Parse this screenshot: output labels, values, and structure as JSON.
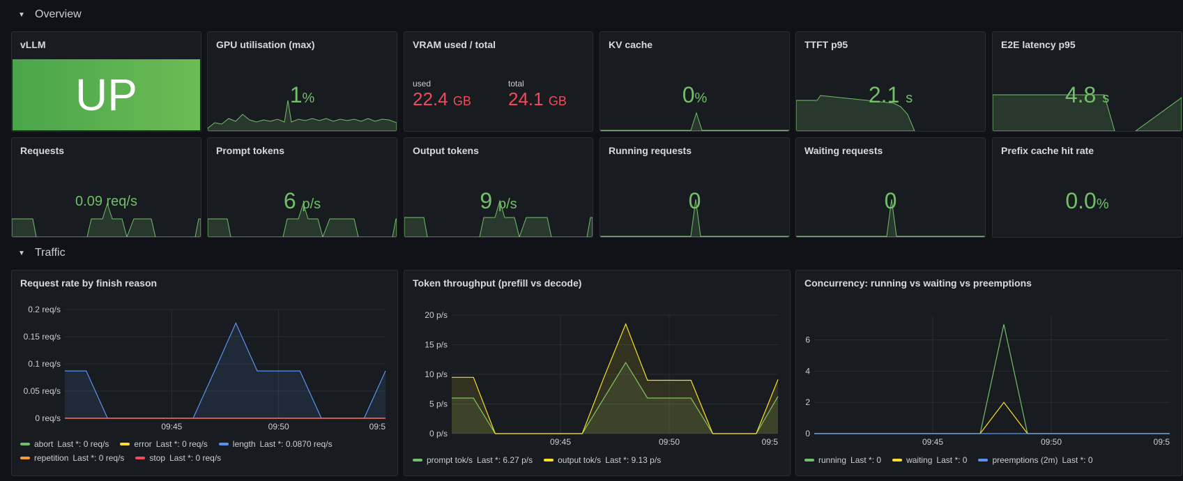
{
  "rows": {
    "overview": {
      "title": "Overview"
    },
    "traffic": {
      "title": "Traffic"
    }
  },
  "colors": {
    "green": "#73bf69",
    "yellow": "#fade2a",
    "blue": "#5794f2",
    "orange": "#ff9830",
    "red": "#f2495c"
  },
  "stat_panels": {
    "vllm": {
      "title": "vLLM",
      "value": "UP"
    },
    "gpu": {
      "title": "GPU utilisation (max)",
      "value": "1",
      "unit": "%"
    },
    "vram": {
      "title": "VRAM used / total",
      "used_label": "used",
      "used_value": "22.4",
      "used_unit": "GB",
      "total_label": "total",
      "total_value": "24.1",
      "total_unit": "GB"
    },
    "kv": {
      "title": "KV cache",
      "value": "0",
      "unit": "%"
    },
    "ttft": {
      "title": "TTFT p95",
      "value": "2.1",
      "unit": "s"
    },
    "e2e": {
      "title": "E2E latency p95",
      "value": "4.8",
      "unit": "s"
    },
    "requests": {
      "title": "Requests",
      "value": "0.09 req/s"
    },
    "prompt": {
      "title": "Prompt tokens",
      "value": "6",
      "unit": "p/s"
    },
    "output": {
      "title": "Output tokens",
      "value": "9",
      "unit": "p/s"
    },
    "running": {
      "title": "Running requests",
      "value": "0"
    },
    "waiting": {
      "title": "Waiting requests",
      "value": "0"
    },
    "prefix": {
      "title": "Prefix cache hit rate",
      "value": "0.0",
      "unit": "%"
    }
  },
  "chart_data": [
    {
      "type": "area",
      "title": "Request rate by finish reason",
      "x": [
        "09:40",
        "09:41",
        "09:42",
        "09:43",
        "09:44",
        "09:45",
        "09:46",
        "09:47",
        "09:48",
        "09:49",
        "09:50",
        "09:51",
        "09:52",
        "09:53",
        "09:54",
        "09:55"
      ],
      "xticks": [
        "09:45",
        "09:50",
        "09:5"
      ],
      "yticks": [
        "0 req/s",
        "0.05 req/s",
        "0.1 req/s",
        "0.15 req/s",
        "0.2 req/s"
      ],
      "ylim": [
        0,
        0.2
      ],
      "series": [
        {
          "name": "abort",
          "color": "#73bf69",
          "last": "Last *: 0 req/s",
          "values": [
            0,
            0,
            0,
            0,
            0,
            0,
            0,
            0,
            0,
            0,
            0,
            0,
            0,
            0,
            0,
            0
          ]
        },
        {
          "name": "error",
          "color": "#fade2a",
          "last": "Last *: 0 req/s",
          "values": [
            0,
            0,
            0,
            0,
            0,
            0,
            0,
            0,
            0,
            0,
            0,
            0,
            0,
            0,
            0,
            0
          ]
        },
        {
          "name": "length",
          "color": "#5794f2",
          "last": "Last *: 0.0870 req/s",
          "values": [
            0.087,
            0.087,
            0,
            0,
            0,
            0,
            0,
            0.087,
            0.175,
            0.087,
            0.087,
            0.087,
            0,
            0,
            0,
            0.087
          ]
        },
        {
          "name": "repetition",
          "color": "#ff9830",
          "last": "Last *: 0 req/s",
          "values": [
            0,
            0,
            0,
            0,
            0,
            0,
            0,
            0,
            0,
            0,
            0,
            0,
            0,
            0,
            0,
            0
          ]
        },
        {
          "name": "stop",
          "color": "#f2495c",
          "last": "Last *: 0 req/s",
          "values": [
            0,
            0,
            0,
            0,
            0,
            0,
            0,
            0,
            0,
            0,
            0,
            0,
            0,
            0,
            0,
            0
          ]
        }
      ]
    },
    {
      "type": "area",
      "title": "Token throughput (prefill vs decode)",
      "x": [
        "09:40",
        "09:41",
        "09:42",
        "09:43",
        "09:44",
        "09:45",
        "09:46",
        "09:47",
        "09:48",
        "09:49",
        "09:50",
        "09:51",
        "09:52",
        "09:53",
        "09:54",
        "09:55"
      ],
      "xticks": [
        "09:45",
        "09:50",
        "09:5"
      ],
      "yticks": [
        "0 p/s",
        "5 p/s",
        "10 p/s",
        "15 p/s",
        "20 p/s"
      ],
      "ylim": [
        0,
        20
      ],
      "series": [
        {
          "name": "prompt tok/s",
          "color": "#73bf69",
          "last": "Last *: 6.27 p/s",
          "values": [
            6,
            6,
            0,
            0,
            0,
            0,
            0,
            6,
            12,
            6,
            6,
            6,
            0,
            0,
            0,
            6.27
          ]
        },
        {
          "name": "output tok/s",
          "color": "#fade2a",
          "last": "Last *: 9.13 p/s",
          "values": [
            9.5,
            9.5,
            0,
            0,
            0,
            0,
            0,
            9.5,
            18.5,
            9,
            9,
            9,
            0,
            0,
            0,
            9.13
          ]
        }
      ]
    },
    {
      "type": "line",
      "title": "Concurrency: running vs waiting vs preemptions",
      "x": [
        "09:40",
        "09:41",
        "09:42",
        "09:43",
        "09:44",
        "09:45",
        "09:46",
        "09:47",
        "09:48",
        "09:49",
        "09:50",
        "09:51",
        "09:52",
        "09:53",
        "09:54",
        "09:55"
      ],
      "xticks": [
        "09:45",
        "09:50",
        "09:5"
      ],
      "yticks": [
        "0",
        "2",
        "4",
        "6"
      ],
      "ylim": [
        0,
        7.5
      ],
      "series": [
        {
          "name": "running",
          "color": "#73bf69",
          "last": "Last *: 0",
          "values": [
            0,
            0,
            0,
            0,
            0,
            0,
            0,
            0,
            7,
            0,
            0,
            0,
            0,
            0,
            0,
            0
          ]
        },
        {
          "name": "waiting",
          "color": "#fade2a",
          "last": "Last *: 0",
          "values": [
            0,
            0,
            0,
            0,
            0,
            0,
            0,
            0,
            2,
            0,
            0,
            0,
            0,
            0,
            0,
            0
          ]
        },
        {
          "name": "preemptions (2m)",
          "color": "#5794f2",
          "last": "Last *: 0",
          "values": [
            0,
            0,
            0,
            0,
            0,
            0,
            0,
            0,
            0,
            0,
            0,
            0,
            0,
            0,
            0,
            0
          ]
        }
      ]
    }
  ]
}
